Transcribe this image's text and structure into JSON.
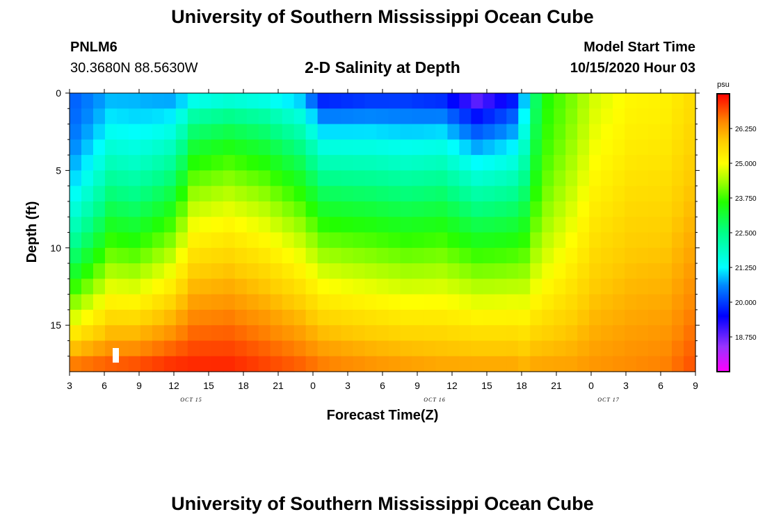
{
  "header": {
    "title": "University of Southern Mississippi Ocean Cube",
    "station_id": "PNLM6",
    "coordinates": "30.3680N 88.5630W",
    "plot_title": "2-D Salinity at Depth",
    "model_label": "Model Start Time",
    "model_time": "10/15/2020 Hour 03",
    "footer_title": "University of Southern Mississippi Ocean Cube"
  },
  "chart_data": {
    "type": "heatmap",
    "title": "2-D Salinity at Depth",
    "xlabel": "Forecast Time(Z)",
    "ylabel": "Depth (ft)",
    "x_tick_labels": [
      "3",
      "6",
      "9",
      "12",
      "15",
      "18",
      "21",
      "0",
      "3",
      "6",
      "9",
      "12",
      "15",
      "18",
      "21",
      "0",
      "3",
      "6",
      "9"
    ],
    "x_date_labels": [
      {
        "label": "OCT 15",
        "tick_index": 3.5
      },
      {
        "label": "OCT 16",
        "tick_index": 10.5
      },
      {
        "label": "OCT 17",
        "tick_index": 15.5
      }
    ],
    "y_ticks": [
      0,
      5,
      10,
      15
    ],
    "ylim": [
      18,
      0
    ],
    "n_time_steps": 53,
    "n_depth_layers": 18,
    "colorbar": {
      "unit": "psu",
      "min": 17.5,
      "max": 27.5,
      "tick_values": [
        26.25,
        25.0,
        23.75,
        22.5,
        21.25,
        20.0,
        18.75
      ],
      "tick_labels": [
        "26.250",
        "25.000",
        "23.750",
        "22.500",
        "21.250",
        "20.000",
        "18.750"
      ],
      "stops": [
        {
          "v": 17.5,
          "c": "#ff00ff"
        },
        {
          "v": 18.4,
          "c": "#9933ff"
        },
        {
          "v": 19.5,
          "c": "#0000ff"
        },
        {
          "v": 20.6,
          "c": "#0088ff"
        },
        {
          "v": 21.25,
          "c": "#00ffff"
        },
        {
          "v": 22.5,
          "c": "#00ff88"
        },
        {
          "v": 23.6,
          "c": "#22ff00"
        },
        {
          "v": 24.3,
          "c": "#99ff00"
        },
        {
          "v": 25.0,
          "c": "#ffff00"
        },
        {
          "v": 25.8,
          "c": "#ffcc00"
        },
        {
          "v": 26.5,
          "c": "#ff8800"
        },
        {
          "v": 27.5,
          "c": "#ff0000"
        }
      ]
    },
    "salinity_profiles": [
      {
        "t": 0,
        "surf": 20.3,
        "deep": 26.9,
        "shape": 1.8
      },
      {
        "t": 3,
        "surf": 20.8,
        "deep": 27.0,
        "shape": 1.2
      },
      {
        "t": 5,
        "surf": 20.8,
        "deep": 27.1,
        "shape": 1.3
      },
      {
        "t": 8,
        "surf": 20.6,
        "deep": 27.3,
        "shape": 1.0
      },
      {
        "t": 10,
        "surf": 20.7,
        "deep": 27.3,
        "shape": 0.6
      },
      {
        "t": 13,
        "surf": 20.8,
        "deep": 27.3,
        "shape": 0.55
      },
      {
        "t": 16,
        "surf": 20.8,
        "deep": 27.1,
        "shape": 0.6
      },
      {
        "t": 19,
        "surf": 20.5,
        "deep": 26.9,
        "shape": 0.7
      },
      {
        "t": 21,
        "surf": 19.2,
        "deep": 26.7,
        "shape": 0.7
      },
      {
        "t": 25,
        "surf": 19.5,
        "deep": 26.5,
        "shape": 0.75
      },
      {
        "t": 28,
        "surf": 19.6,
        "deep": 26.4,
        "shape": 0.8
      },
      {
        "t": 31,
        "surf": 19.3,
        "deep": 26.3,
        "shape": 0.7
      },
      {
        "t": 34,
        "surf": 18.2,
        "deep": 26.3,
        "shape": 0.7
      },
      {
        "t": 37,
        "surf": 19.3,
        "deep": 26.3,
        "shape": 0.8
      },
      {
        "t": 38,
        "surf": 20.8,
        "deep": 26.2,
        "shape": 1.0
      },
      {
        "t": 39,
        "surf": 22.8,
        "deep": 26.3,
        "shape": 1.4
      },
      {
        "t": 40,
        "surf": 23.6,
        "deep": 26.3,
        "shape": 1.6
      },
      {
        "t": 42,
        "surf": 24.1,
        "deep": 26.3,
        "shape": 1.4
      },
      {
        "t": 44,
        "surf": 24.7,
        "deep": 26.4,
        "shape": 1.2
      },
      {
        "t": 47,
        "surf": 25.1,
        "deep": 26.5,
        "shape": 1.2
      },
      {
        "t": 50,
        "surf": 25.2,
        "deep": 26.6,
        "shape": 1.3
      },
      {
        "t": 52,
        "surf": 25.5,
        "deep": 26.9,
        "shape": 1.3
      }
    ]
  }
}
